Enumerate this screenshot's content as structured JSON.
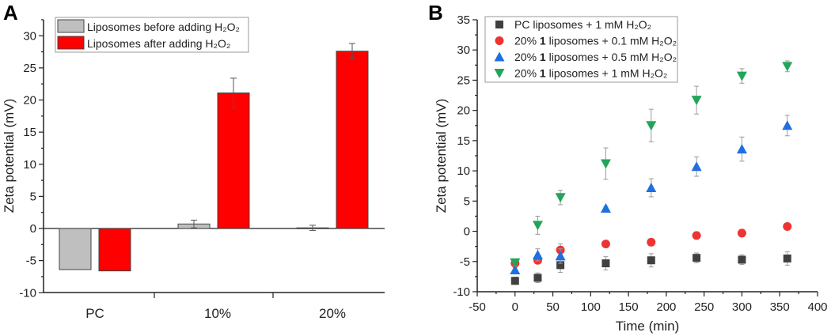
{
  "chart_data": [
    {
      "panel_label": "A",
      "type": "bar",
      "ylabel": "Zeta potential (mV)",
      "xlabel": "",
      "ylim": [
        -10,
        32.5
      ],
      "yticks": [
        -10,
        -5,
        0,
        5,
        10,
        15,
        20,
        25,
        30
      ],
      "categories": [
        "PC",
        "10%",
        "20%"
      ],
      "legend_position": "top-left",
      "series": [
        {
          "name": "Liposomes before adding H₂O₂",
          "color": "#bfbfbf",
          "values": [
            -6.4,
            0.7,
            0.1
          ],
          "errors": [
            0,
            0.6,
            0.4
          ]
        },
        {
          "name": "Liposomes after adding H₂O₂",
          "color": "#ff0000",
          "values": [
            -6.6,
            21.1,
            27.6
          ],
          "errors": [
            0,
            2.3,
            1.2
          ]
        }
      ]
    },
    {
      "panel_label": "B",
      "type": "scatter",
      "xlabel": "Time (min)",
      "ylabel": "Zeta potential (mV)",
      "xlim": [
        -50,
        400
      ],
      "ylim": [
        -10,
        35
      ],
      "xticks": [
        -50,
        0,
        50,
        100,
        150,
        200,
        250,
        300,
        350,
        400
      ],
      "yticks": [
        -10,
        -5,
        0,
        5,
        10,
        15,
        20,
        25,
        30,
        35
      ],
      "legend_position": "top-left",
      "x": [
        0,
        30,
        60,
        120,
        180,
        240,
        300,
        360
      ],
      "series": [
        {
          "name": "PC liposomes + 1 mM H₂O₂",
          "parts": [
            "PC liposomes + 1 mM H₂O₂",
            "",
            ""
          ],
          "marker": "square",
          "color": "#404040",
          "values": [
            -8.2,
            -7.7,
            -5.6,
            -5.3,
            -4.8,
            -4.4,
            -4.7,
            -4.5
          ],
          "errors": [
            0.6,
            0.8,
            1.2,
            1.1,
            1.1,
            0.8,
            0.8,
            1.1
          ]
        },
        {
          "name": "20% 1 liposomes + 0.1 mM H₂O₂",
          "parts": [
            "20% ",
            "1",
            " liposomes + 0.1 mM H₂O₂"
          ],
          "marker": "circle",
          "color": "#ee3333",
          "values": [
            -5.3,
            -4.8,
            -3.1,
            -2.1,
            -1.8,
            -0.7,
            -0.3,
            0.8
          ],
          "errors": [
            0.5,
            0.4,
            1.0,
            0.5,
            0.4,
            0.6,
            0.6,
            0.3
          ]
        },
        {
          "name": "20% 1 liposomes + 0.5 mM H₂O₂",
          "parts": [
            "20% ",
            "1",
            " liposomes + 0.5 mM H₂O₂"
          ],
          "marker": "triangle-up",
          "color": "#1f6fe0",
          "values": [
            -6.4,
            -3.9,
            -4.1,
            3.8,
            7.2,
            10.7,
            13.6,
            17.5
          ],
          "errors": [
            0.4,
            1.0,
            1.2,
            0.3,
            1.5,
            1.6,
            2.0,
            1.7
          ]
        },
        {
          "name": "20% 1 liposomes + 1 mM H₂O₂",
          "parts": [
            "20% ",
            "1",
            " liposomes + 1 mM H₂O₂"
          ],
          "marker": "triangle-down",
          "color": "#22a55a",
          "values": [
            -5.2,
            1.0,
            5.6,
            11.2,
            17.5,
            21.7,
            25.7,
            27.3
          ],
          "errors": [
            0.5,
            1.5,
            1.2,
            2.6,
            2.7,
            2.3,
            1.2,
            0.9
          ]
        }
      ]
    }
  ]
}
